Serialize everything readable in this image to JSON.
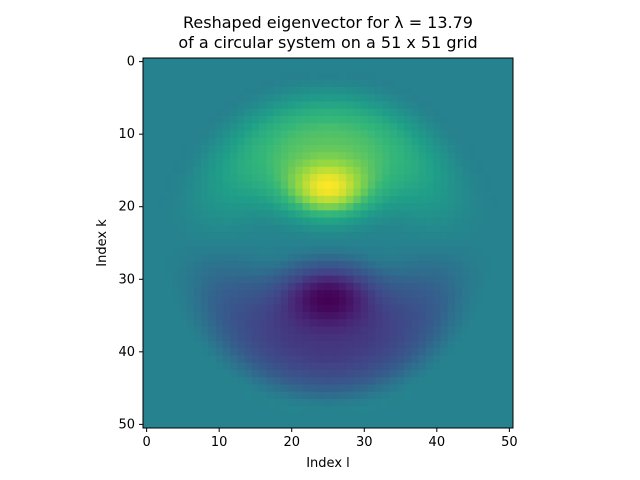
{
  "chart_data": {
    "type": "heatmap",
    "title_lines": [
      "Reshaped eigenvector for λ = 13.79",
      "of a circular system on a 51 x 51 grid"
    ],
    "xlabel": "Index l",
    "ylabel": "Index k",
    "grid_size": [
      51,
      51
    ],
    "x_ticks": [
      0,
      10,
      20,
      30,
      40,
      50
    ],
    "y_ticks": [
      0,
      10,
      20,
      30,
      40,
      50
    ],
    "colormap": "viridis",
    "grid": false,
    "y_axis_inverted": true,
    "center": [
      25,
      25
    ],
    "radius": 24
  }
}
